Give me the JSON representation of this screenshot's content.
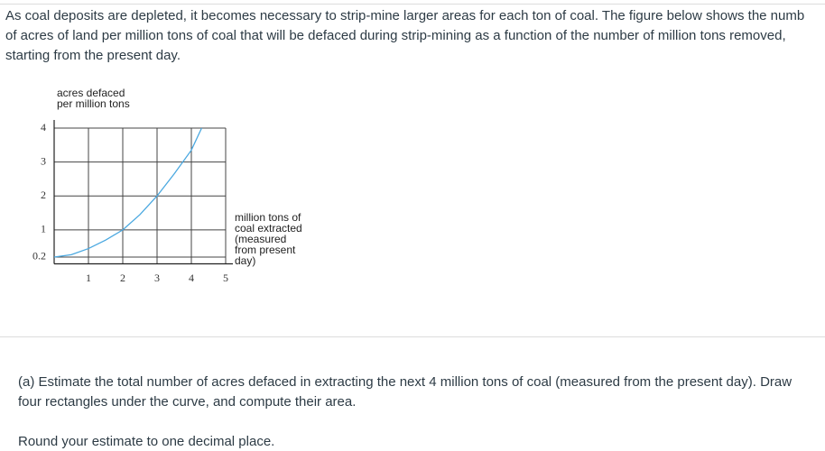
{
  "question": {
    "intro_lines": [
      "As coal deposits are depleted, it becomes necessary to strip-mine larger areas for each ton of coal. The figure below shows the numb",
      "of acres of land per million tons of coal that will be defaced during strip-mining as a function of the number of million tons removed,",
      "starting from the present day."
    ],
    "part_a_lines": [
      "(a) Estimate the total number of acres defaced in extracting the next 4 million tons of coal (measured from the present day). Draw",
      "four rectangles under the curve, and compute their area."
    ],
    "instruction": "Round your estimate to one decimal place."
  },
  "chart_data": {
    "type": "line",
    "ylabel": [
      "acres defaced",
      "per million tons"
    ],
    "xlabel": [
      "million tons of",
      "coal extracted",
      "(measured",
      "from present",
      "day)"
    ],
    "x": [
      0,
      0.5,
      1,
      1.5,
      2,
      2.5,
      3,
      3.5,
      4,
      4.3
    ],
    "values": [
      0.2,
      0.27,
      0.45,
      0.7,
      1,
      1.45,
      2,
      2.65,
      3.35,
      4
    ],
    "color": "#4aa8e0",
    "xlim": [
      0,
      5
    ],
    "ylim": [
      0,
      4
    ],
    "xticks": [
      1,
      2,
      3,
      4,
      5
    ],
    "yticks": [
      0.2,
      1,
      2,
      3,
      4
    ],
    "grid": true
  }
}
